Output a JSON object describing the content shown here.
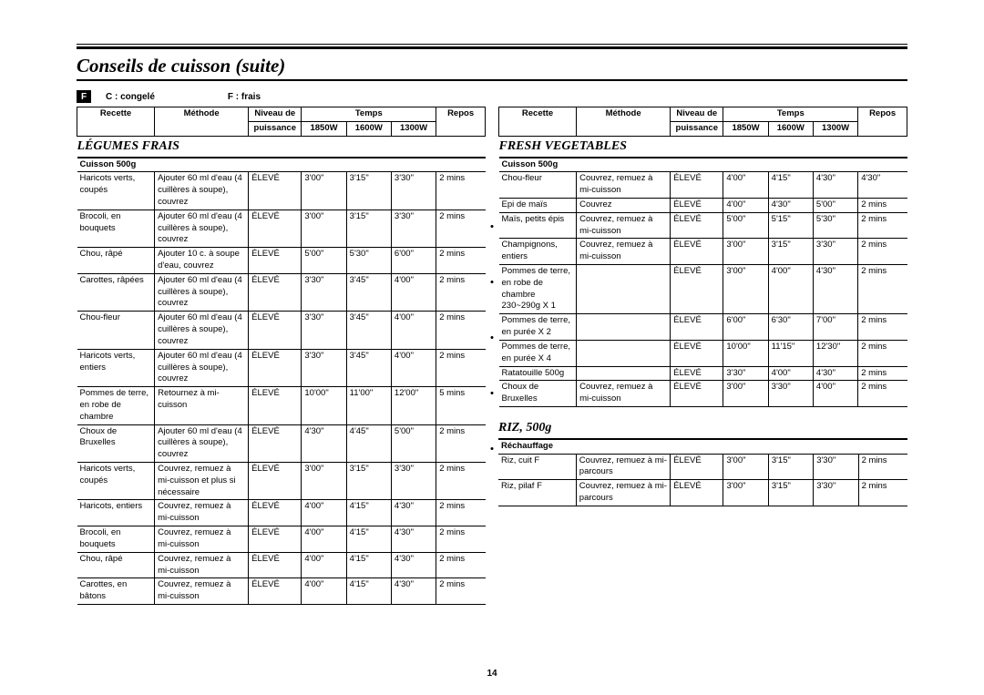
{
  "title": "Conseils de cuisson (suite)",
  "legend": {
    "fbox": "F",
    "congele": "C : congelé",
    "frais": "F : frais"
  },
  "headers": {
    "recette": "Recette",
    "methode": "Méthode",
    "niveau": "Niveau de",
    "puissance": "puissance",
    "temps": "Temps",
    "repos": "Repos",
    "w1": "1850W",
    "w2": "1600W",
    "w3": "1300W"
  },
  "left": {
    "section": "LÉGUMES FRAIS",
    "subhead": "Cuisson 500g",
    "rows": [
      {
        "r": "Haricots verts, coupés",
        "m": "Ajouter 60 ml d'eau (4 cuillères à soupe), couvrez",
        "n": "ÉLEVÉ",
        "t1": "3'00\"",
        "t2": "3'15\"",
        "t3": "3'30\"",
        "p": "2 mins"
      },
      {
        "r": "Brocoli, en bouquets",
        "m": "Ajouter 60 ml d'eau (4 cuillères à soupe), couvrez",
        "n": "ÉLEVÉ",
        "t1": "3'00\"",
        "t2": "3'15\"",
        "t3": "3'30\"",
        "p": "2 mins"
      },
      {
        "r": "Chou, râpé",
        "m": "Ajouter 10 c. à soupe d'eau, couvrez",
        "n": "ÉLEVÉ",
        "t1": "5'00\"",
        "t2": "5'30\"",
        "t3": "6'00\"",
        "p": "2 mins"
      },
      {
        "r": "Carottes, râpées",
        "m": "Ajouter 60 ml d'eau (4 cuillères à soupe), couvrez",
        "n": "ÉLEVÉ",
        "t1": "3'30\"",
        "t2": "3'45\"",
        "t3": "4'00\"",
        "p": "2 mins"
      },
      {
        "r": "Chou-fleur",
        "m": "Ajouter 60 ml d'eau (4 cuillères à soupe), couvrez",
        "n": "ÉLEVÉ",
        "t1": "3'30\"",
        "t2": "3'45\"",
        "t3": "4'00\"",
        "p": "2 mins"
      },
      {
        "r": "Haricots verts, entiers",
        "m": "Ajouter 60 ml d'eau (4 cuillères à soupe), couvrez",
        "n": "ÉLEVÉ",
        "t1": "3'30\"",
        "t2": "3'45\"",
        "t3": "4'00\"",
        "p": "2 mins"
      },
      {
        "r": "Pommes de terre, en robe de chambre",
        "m": "Retournez à mi-cuisson",
        "n": "ÉLEVÉ",
        "t1": "10'00\"",
        "t2": "11'00\"",
        "t3": "12'00\"",
        "p": "5 mins"
      },
      {
        "r": "Choux de Bruxelles",
        "m": "Ajouter 60 ml d'eau (4 cuillères à soupe), couvrez",
        "n": "ÉLEVÉ",
        "t1": "4'30\"",
        "t2": "4'45\"",
        "t3": "5'00\"",
        "p": "2 mins"
      },
      {
        "r": "Haricots verts, coupés",
        "m": "Couvrez, remuez à mi-cuisson et plus si nécessaire",
        "n": "ÉLEVÉ",
        "t1": "3'00\"",
        "t2": "3'15\"",
        "t3": "3'30\"",
        "p": "2 mins"
      },
      {
        "r": "Haricots, entiers",
        "m": "Couvrez, remuez à mi-cuisson",
        "n": "ÉLEVÉ",
        "t1": "4'00\"",
        "t2": "4'15\"",
        "t3": "4'30\"",
        "p": "2 mins"
      },
      {
        "r": "Brocoli, en bouquets",
        "m": "Couvrez, remuez à mi-cuisson",
        "n": "ÉLEVÉ",
        "t1": "4'00\"",
        "t2": "4'15\"",
        "t3": "4'30\"",
        "p": "2 mins"
      },
      {
        "r": "Chou, râpé",
        "m": "Couvrez, remuez à mi-cuisson",
        "n": "ÉLEVÉ",
        "t1": "4'00\"",
        "t2": "4'15\"",
        "t3": "4'30\"",
        "p": "2 mins"
      },
      {
        "r": "Carottes, en bâtons",
        "m": "Couvrez, remuez à mi-cuisson",
        "n": "ÉLEVÉ",
        "t1": "4'00\"",
        "t2": "4'15\"",
        "t3": "4'30\"",
        "p": "2 mins"
      }
    ]
  },
  "right1": {
    "section": "FRESH VEGETABLES",
    "subhead": "Cuisson 500g",
    "rows": [
      {
        "r": "Chou-fleur",
        "m": "Couvrez, remuez à mi-cuisson",
        "n": "ÉLEVÉ",
        "t1": "4'00\"",
        "t2": "4'15\"",
        "t3": "4'30\"",
        "p": "4'30\""
      },
      {
        "r": "Epi de maïs",
        "m": "Couvrez",
        "n": "ÉLEVÉ",
        "t1": "4'00\"",
        "t2": "4'30\"",
        "t3": "5'00\"",
        "p": "2 mins"
      },
      {
        "r": "Maïs, petits épis",
        "m": "Couvrez, remuez à mi-cuisson",
        "n": "ÉLEVÉ",
        "t1": "5'00\"",
        "t2": "5'15\"",
        "t3": "5'30\"",
        "p": "2 mins"
      },
      {
        "r": "Champignons, entiers",
        "m": "Couvrez, remuez à mi-cuisson",
        "n": "ÉLEVÉ",
        "t1": "3'00\"",
        "t2": "3'15\"",
        "t3": "3'30\"",
        "p": "2 mins"
      },
      {
        "r": "Pommes de terre, en robe de chambre 230~290g X 1",
        "m": "",
        "n": "ÉLEVÉ",
        "t1": "3'00\"",
        "t2": "4'00\"",
        "t3": "4'30\"",
        "p": "2 mins"
      },
      {
        "r": "Pommes de terre, en purée X 2",
        "m": "",
        "n": "ÉLEVÉ",
        "t1": "6'00\"",
        "t2": "6'30\"",
        "t3": "7'00\"",
        "p": "2 mins"
      },
      {
        "r": "Pommes de terre, en purée X 4",
        "m": "",
        "n": "ÉLEVÉ",
        "t1": "10'00\"",
        "t2": "11'15\"",
        "t3": "12'30\"",
        "p": "2 mins"
      },
      {
        "r": "Ratatouille 500g",
        "m": "",
        "n": "ÉLEVÉ",
        "t1": "3'30\"",
        "t2": "4'00\"",
        "t3": "4'30\"",
        "p": "2 mins"
      },
      {
        "r": "Choux de Bruxelles",
        "m": "Couvrez, remuez à mi-cuisson",
        "n": "ÉLEVÉ",
        "t1": "3'00\"",
        "t2": "3'30\"",
        "t3": "4'00\"",
        "p": "2 mins"
      }
    ]
  },
  "right2": {
    "section": "RIZ, 500g",
    "subhead": "Réchauffage",
    "rows": [
      {
        "r": "Riz, cuit F",
        "m": "Couvrez, remuez à mi-parcours",
        "n": "ÉLEVÉ",
        "t1": "3'00\"",
        "t2": "3'15\"",
        "t3": "3'30\"",
        "p": "2 mins"
      },
      {
        "r": "Riz, pilaf F",
        "m": "Couvrez, remuez à mi-parcours",
        "n": "ÉLEVÉ",
        "t1": "3'00\"",
        "t2": "3'15\"",
        "t3": "3'30\"",
        "p": "2 mins"
      }
    ]
  },
  "pageNumber": "14"
}
